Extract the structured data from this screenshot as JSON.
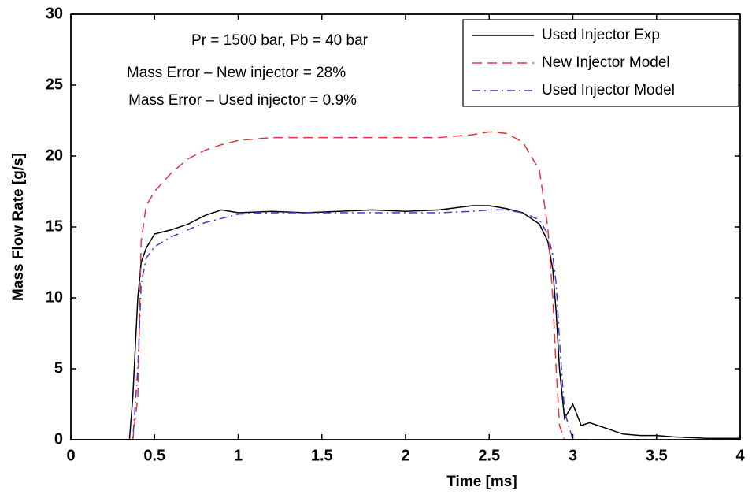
{
  "chart_data": {
    "type": "line",
    "xlabel": "Time [ms]",
    "ylabel": "Mass Flow Rate [g/s]",
    "annotations": [
      "Pr = 1500 bar, Pb = 40 bar",
      "Mass Error – New injector = 28%",
      "Mass Error – Used injector = 0.9%"
    ],
    "x": [
      0,
      0.35,
      0.37,
      0.4,
      0.42,
      0.45,
      0.5,
      0.6,
      0.7,
      0.8,
      0.9,
      1.0,
      1.2,
      1.4,
      1.6,
      1.8,
      2.0,
      2.2,
      2.4,
      2.5,
      2.6,
      2.7,
      2.8,
      2.85,
      2.88,
      2.9,
      2.92,
      2.95,
      3.0,
      3.05,
      3.1,
      3.2,
      3.3,
      3.4,
      3.5,
      3.6,
      3.8,
      4.0
    ],
    "series": [
      {
        "name": "Used Injector Exp",
        "color": "#000000",
        "style": "solid",
        "values": [
          0,
          0,
          3,
          10,
          12.5,
          13.5,
          14.5,
          14.8,
          15.2,
          15.8,
          16.2,
          16.0,
          16.1,
          16.0,
          16.1,
          16.2,
          16.1,
          16.2,
          16.5,
          16.5,
          16.3,
          16.0,
          15.2,
          14.0,
          12,
          9,
          5,
          1.5,
          2.5,
          1.0,
          1.2,
          0.8,
          0.4,
          0.3,
          0.3,
          0.2,
          0.1,
          0.1
        ]
      },
      {
        "name": "New Injector Model",
        "color": "#e8343a",
        "style": "dashed",
        "values": [
          0,
          0,
          0,
          3,
          14,
          16.5,
          17.5,
          18.8,
          19.8,
          20.4,
          20.8,
          21.1,
          21.3,
          21.3,
          21.3,
          21.3,
          21.3,
          21.3,
          21.5,
          21.7,
          21.6,
          21.0,
          19,
          15,
          10,
          5,
          1,
          0,
          0,
          0,
          0,
          0,
          0,
          0,
          0,
          0,
          0,
          0
        ]
      },
      {
        "name": "Used Injector Model",
        "color": "#3a3ad6",
        "style": "dashdot",
        "values": [
          0,
          0,
          0,
          5,
          11,
          12.8,
          13.6,
          14.3,
          14.8,
          15.3,
          15.6,
          15.9,
          16.0,
          16.0,
          16.0,
          16.0,
          16.0,
          16.0,
          16.1,
          16.2,
          16.2,
          16.0,
          15.5,
          14.5,
          13,
          11,
          7,
          2,
          0,
          0,
          0,
          0,
          0,
          0,
          0,
          0,
          0,
          0
        ]
      }
    ],
    "xlim": [
      0,
      4
    ],
    "xticks": [
      0,
      0.5,
      1,
      1.5,
      2,
      2.5,
      3,
      3.5,
      4
    ],
    "ylim": [
      0,
      30
    ],
    "yticks": [
      0,
      5,
      10,
      15,
      20,
      25,
      30
    ],
    "grid": false,
    "legend": "upper right"
  }
}
